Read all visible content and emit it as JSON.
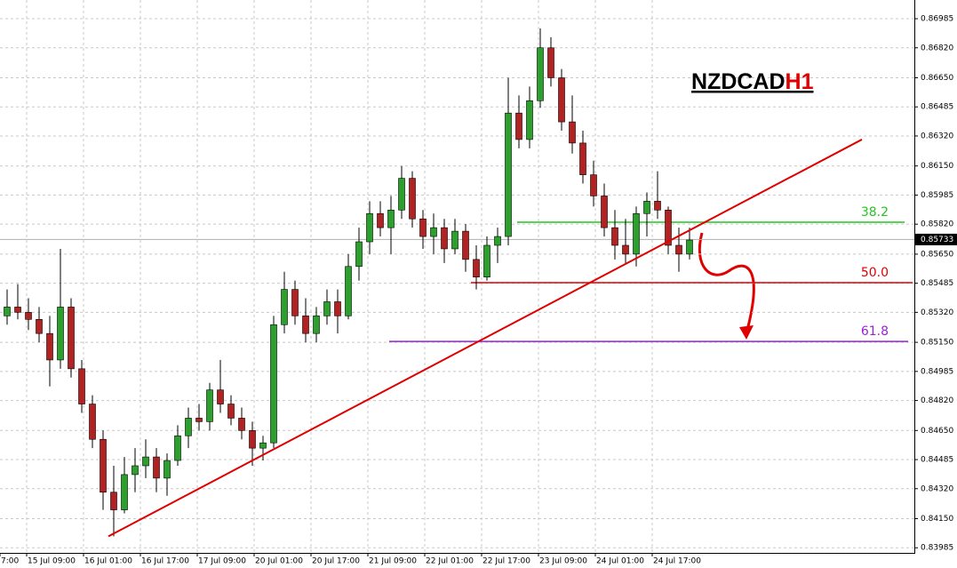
{
  "chart_data": {
    "type": "candlestick",
    "title_symbol": "NZDCAD",
    "title_period": "H1",
    "xlim": [
      0,
      257.25
    ],
    "ylim": [
      0.83956,
      0.87091
    ],
    "yticks": [
      {
        "value": 0.86985,
        "label": "0.86985"
      },
      {
        "value": 0.8682,
        "label": "0.86820"
      },
      {
        "value": 0.8665,
        "label": "0.86650"
      },
      {
        "value": 0.86485,
        "label": "0.86485"
      },
      {
        "value": 0.8632,
        "label": "0.86320"
      },
      {
        "value": 0.8615,
        "label": "0.86150"
      },
      {
        "value": 0.85985,
        "label": "0.85985"
      },
      {
        "value": 0.8582,
        "label": "0.85820"
      },
      {
        "value": 0.8565,
        "label": "0.85650"
      },
      {
        "value": 0.85485,
        "label": "0.85485"
      },
      {
        "value": 0.8532,
        "label": "0.85320"
      },
      {
        "value": 0.8515,
        "label": "0.85150"
      },
      {
        "value": 0.84985,
        "label": "0.84985"
      },
      {
        "value": 0.8482,
        "label": "0.84820"
      },
      {
        "value": 0.8465,
        "label": "0.84650"
      },
      {
        "value": 0.84485,
        "label": "0.84485"
      },
      {
        "value": 0.8432,
        "label": "0.84320"
      },
      {
        "value": 0.8415,
        "label": "0.84150"
      },
      {
        "value": 0.83985,
        "label": "0.83985"
      }
    ],
    "xticks": [
      {
        "value": 0,
        "label": "7:00"
      },
      {
        "value": 7.5,
        "label": "15 Jul 09:00"
      },
      {
        "value": 23.5,
        "label": "16 Jul 01:00"
      },
      {
        "value": 39.5,
        "label": "16 Jul 17:00"
      },
      {
        "value": 55.5,
        "label": "17 Jul 09:00"
      },
      {
        "value": 71.5,
        "label": "20 Jul 01:00"
      },
      {
        "value": 87.5,
        "label": "20 Jul 17:00"
      },
      {
        "value": 103.5,
        "label": "21 Jul 09:00"
      },
      {
        "value": 119.5,
        "label": "22 Jul 01:00"
      },
      {
        "value": 135.5,
        "label": "22 Jul 17:00"
      },
      {
        "value": 151.5,
        "label": "23 Jul 09:00"
      },
      {
        "value": 167.5,
        "label": "24 Jul 01:00"
      },
      {
        "value": 183.5,
        "label": "24 Jul 17:00"
      }
    ],
    "grid": true,
    "up_color": "#2ca02c",
    "down_color": "#b22222",
    "x": [
      2,
      5,
      8,
      11,
      14,
      17,
      20,
      23,
      26,
      29,
      32,
      35,
      38,
      41,
      44,
      47,
      50,
      53,
      56,
      59,
      62,
      65,
      68,
      71,
      74,
      77,
      80,
      83,
      86,
      89,
      92,
      95,
      98,
      101,
      104,
      107,
      110,
      113,
      116,
      119,
      122,
      125,
      128,
      131,
      134,
      137,
      140,
      143,
      146,
      149,
      152,
      155,
      158,
      161,
      164,
      167,
      170,
      173,
      176,
      179,
      182,
      185,
      188,
      191,
      194
    ],
    "candles": [
      [
        0.853,
        0.8545,
        0.8525,
        0.8535
      ],
      [
        0.8535,
        0.8548,
        0.8528,
        0.8532
      ],
      [
        0.8532,
        0.854,
        0.8522,
        0.8528
      ],
      [
        0.8528,
        0.8535,
        0.8515,
        0.852
      ],
      [
        0.852,
        0.853,
        0.849,
        0.8505
      ],
      [
        0.8505,
        0.8568,
        0.85,
        0.8535
      ],
      [
        0.8535,
        0.854,
        0.8495,
        0.85
      ],
      [
        0.85,
        0.8505,
        0.8475,
        0.848
      ],
      [
        0.848,
        0.8485,
        0.8455,
        0.846
      ],
      [
        0.846,
        0.8465,
        0.842,
        0.843
      ],
      [
        0.843,
        0.8445,
        0.8405,
        0.842
      ],
      [
        0.842,
        0.845,
        0.8418,
        0.844
      ],
      [
        0.844,
        0.8455,
        0.843,
        0.8445
      ],
      [
        0.8445,
        0.846,
        0.8438,
        0.845
      ],
      [
        0.845,
        0.8455,
        0.843,
        0.8438
      ],
      [
        0.8438,
        0.8452,
        0.8428,
        0.8448
      ],
      [
        0.8448,
        0.8468,
        0.8445,
        0.8462
      ],
      [
        0.8462,
        0.8478,
        0.8455,
        0.8472
      ],
      [
        0.8472,
        0.848,
        0.8465,
        0.847
      ],
      [
        0.847,
        0.8492,
        0.8465,
        0.8488
      ],
      [
        0.8488,
        0.8505,
        0.8475,
        0.848
      ],
      [
        0.848,
        0.8485,
        0.8468,
        0.8472
      ],
      [
        0.8472,
        0.8478,
        0.846,
        0.8465
      ],
      [
        0.8465,
        0.847,
        0.8445,
        0.8455
      ],
      [
        0.8455,
        0.8462,
        0.8448,
        0.8458
      ],
      [
        0.8458,
        0.853,
        0.8455,
        0.8525
      ],
      [
        0.8525,
        0.8555,
        0.852,
        0.8545
      ],
      [
        0.8545,
        0.855,
        0.8525,
        0.853
      ],
      [
        0.853,
        0.854,
        0.8515,
        0.852
      ],
      [
        0.852,
        0.8535,
        0.8515,
        0.853
      ],
      [
        0.853,
        0.8545,
        0.8525,
        0.8538
      ],
      [
        0.8538,
        0.8545,
        0.852,
        0.853
      ],
      [
        0.853,
        0.8565,
        0.8528,
        0.8558
      ],
      [
        0.8558,
        0.858,
        0.855,
        0.8572
      ],
      [
        0.8572,
        0.8595,
        0.8565,
        0.8588
      ],
      [
        0.8588,
        0.8595,
        0.8575,
        0.858
      ],
      [
        0.858,
        0.8598,
        0.8565,
        0.859
      ],
      [
        0.859,
        0.8615,
        0.8585,
        0.8608
      ],
      [
        0.8608,
        0.8612,
        0.858,
        0.8585
      ],
      [
        0.8585,
        0.859,
        0.8568,
        0.8575
      ],
      [
        0.8575,
        0.8588,
        0.8565,
        0.858
      ],
      [
        0.858,
        0.8585,
        0.856,
        0.8568
      ],
      [
        0.8568,
        0.8585,
        0.8565,
        0.8578
      ],
      [
        0.8578,
        0.8582,
        0.8555,
        0.8562
      ],
      [
        0.8562,
        0.857,
        0.8545,
        0.8552
      ],
      [
        0.8552,
        0.8575,
        0.855,
        0.857
      ],
      [
        0.857,
        0.858,
        0.856,
        0.8575
      ],
      [
        0.8575,
        0.8665,
        0.857,
        0.8645
      ],
      [
        0.8645,
        0.8655,
        0.8625,
        0.863
      ],
      [
        0.863,
        0.866,
        0.8625,
        0.8652
      ],
      [
        0.8652,
        0.8693,
        0.8648,
        0.8682
      ],
      [
        0.8682,
        0.8688,
        0.866,
        0.8665
      ],
      [
        0.8665,
        0.867,
        0.8635,
        0.864
      ],
      [
        0.864,
        0.8655,
        0.8622,
        0.8628
      ],
      [
        0.8628,
        0.8635,
        0.8605,
        0.861
      ],
      [
        0.861,
        0.8618,
        0.8592,
        0.8598
      ],
      [
        0.8598,
        0.8605,
        0.8575,
        0.858
      ],
      [
        0.858,
        0.859,
        0.8562,
        0.857
      ],
      [
        0.857,
        0.8585,
        0.856,
        0.8565
      ],
      [
        0.8565,
        0.8592,
        0.8558,
        0.8588
      ],
      [
        0.8588,
        0.86,
        0.8575,
        0.8595
      ],
      [
        0.8595,
        0.8612,
        0.8585,
        0.859
      ],
      [
        0.859,
        0.8592,
        0.8565,
        0.857
      ],
      [
        0.857,
        0.858,
        0.8555,
        0.8565
      ],
      [
        0.8565,
        0.858,
        0.8562,
        0.8573
      ]
    ],
    "current_price": 0.85733,
    "trendline": {
      "x": [
        30.5,
        242.5
      ],
      "y": [
        0.8405,
        0.863
      ],
      "color": "#e00000"
    },
    "fib_levels": [
      {
        "label": "38.2",
        "value": 0.85831,
        "color": "#22c522",
        "x": [
          145.5,
          254.5
        ]
      },
      {
        "label": "50.0",
        "value": 0.85488,
        "color": "#e00000",
        "x": [
          132.5,
          256.75
        ]
      },
      {
        "label": "61.8",
        "value": 0.85155,
        "color": "#9a1ed6",
        "x": [
          109.5,
          255.5
        ]
      }
    ]
  }
}
